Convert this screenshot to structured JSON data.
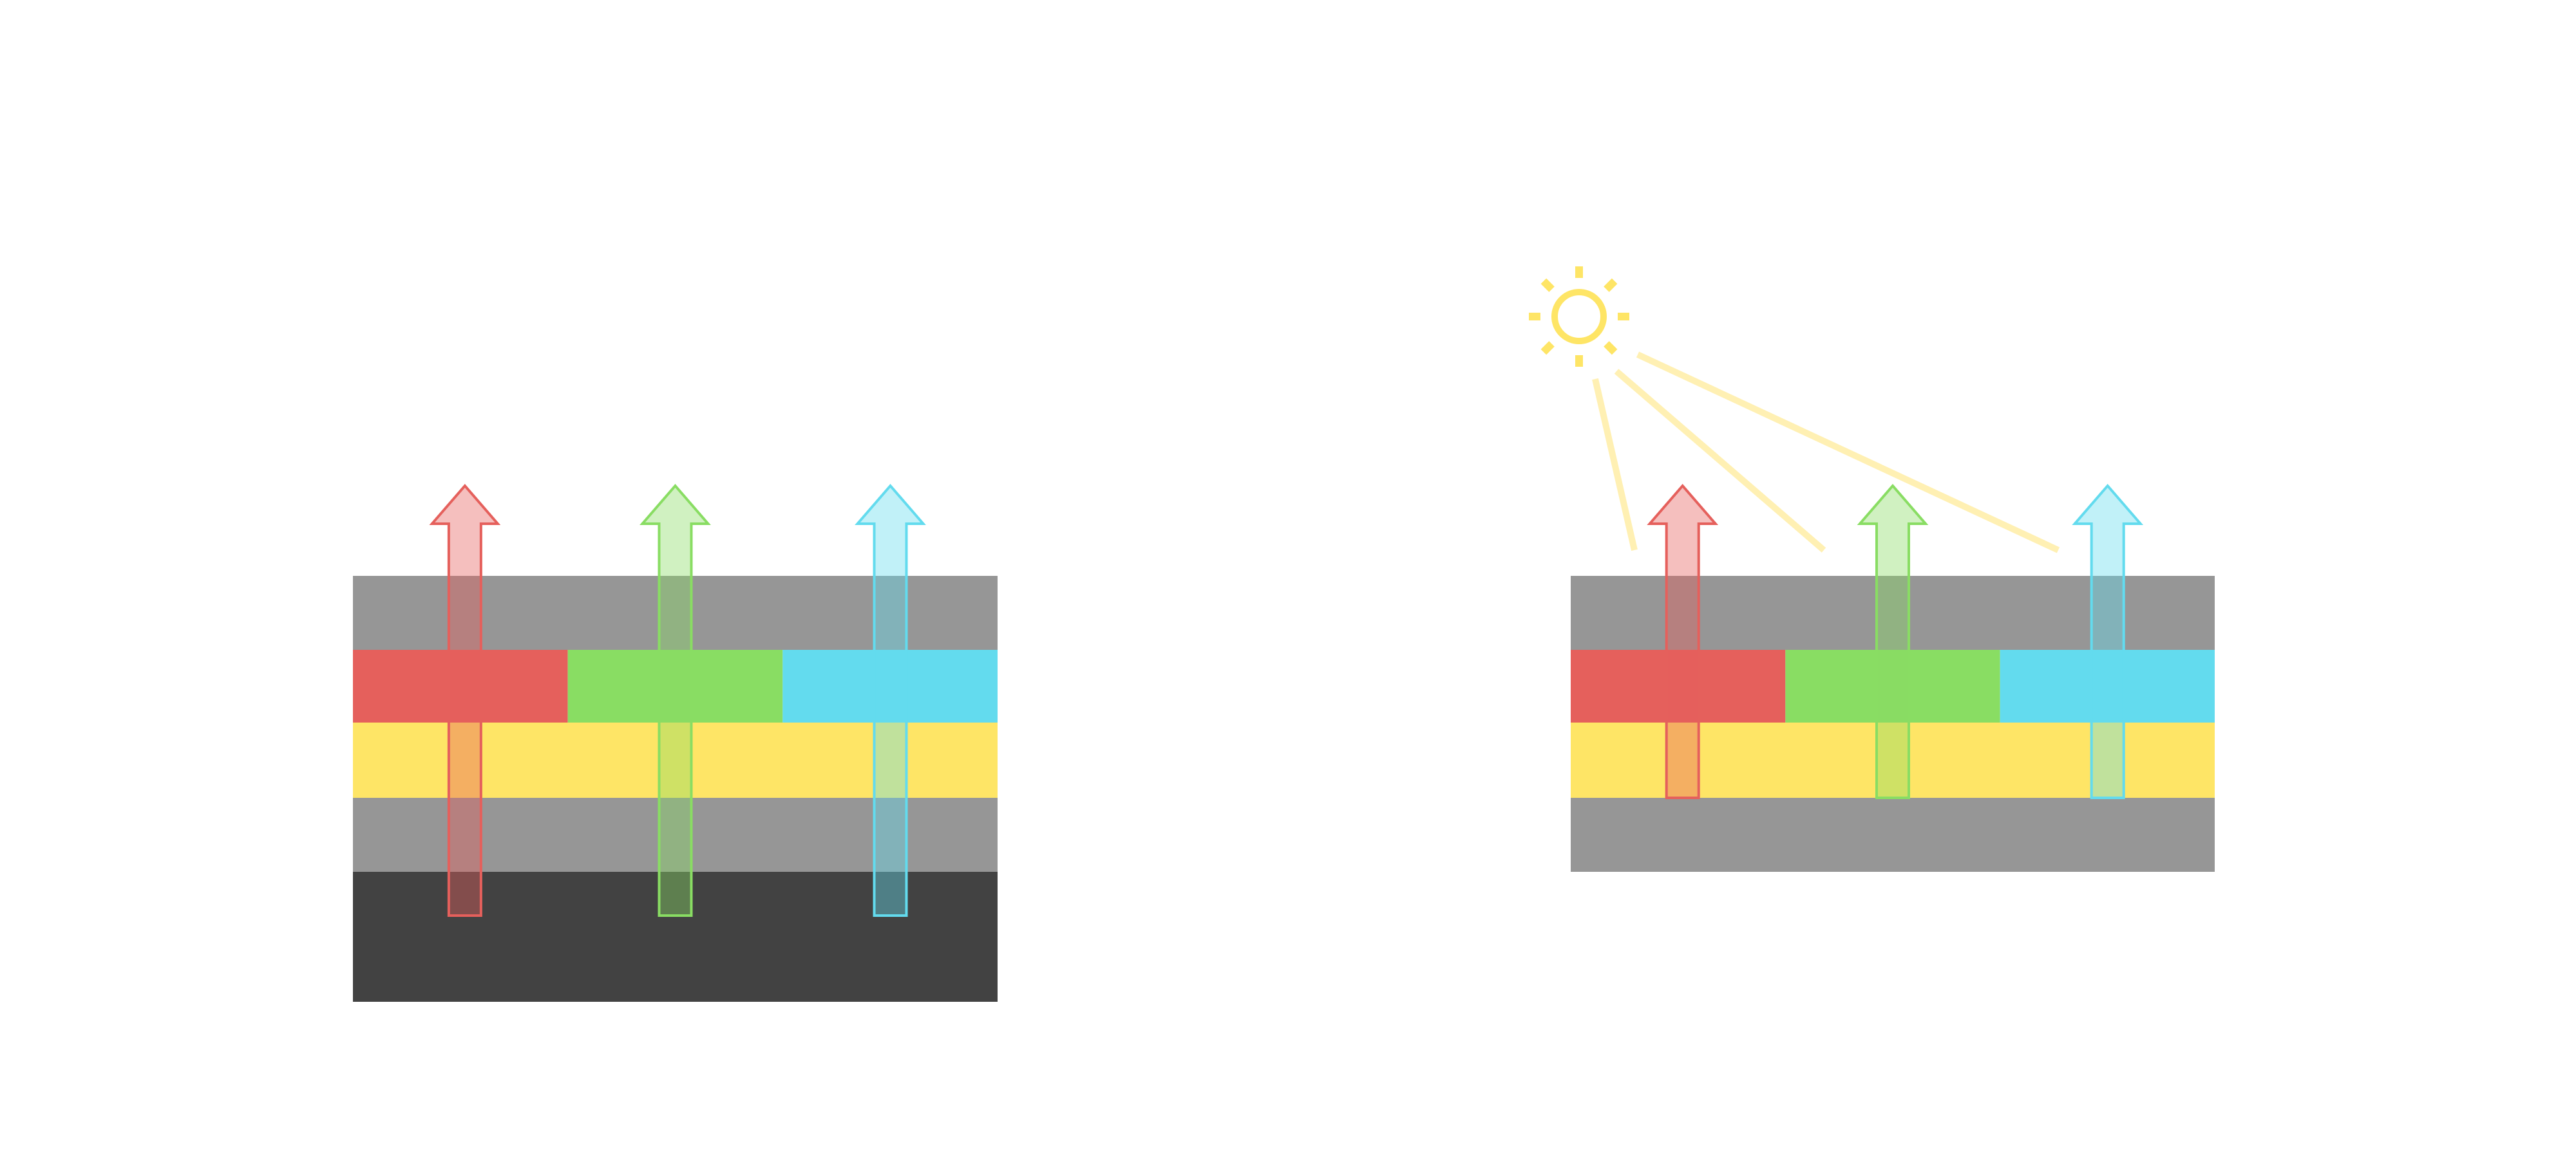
{
  "colors": {
    "gray_layer": "#969696",
    "dark_layer": "#424242",
    "yellow_layer": "#fee566",
    "red": "#e5605c",
    "green": "#89dd63",
    "cyan": "#63dbee",
    "sun": "#fee566",
    "light_ray": "#fff0b3"
  },
  "diagrams": [
    {
      "name": "left-stack",
      "layers": [
        "gray",
        "rgb",
        "yellow",
        "gray",
        "dark"
      ],
      "arrows": [
        "red",
        "green",
        "cyan"
      ],
      "sun": false
    },
    {
      "name": "right-stack",
      "layers": [
        "gray",
        "rgb",
        "yellow",
        "gray"
      ],
      "arrows": [
        "red",
        "green",
        "cyan"
      ],
      "sun": true
    }
  ]
}
